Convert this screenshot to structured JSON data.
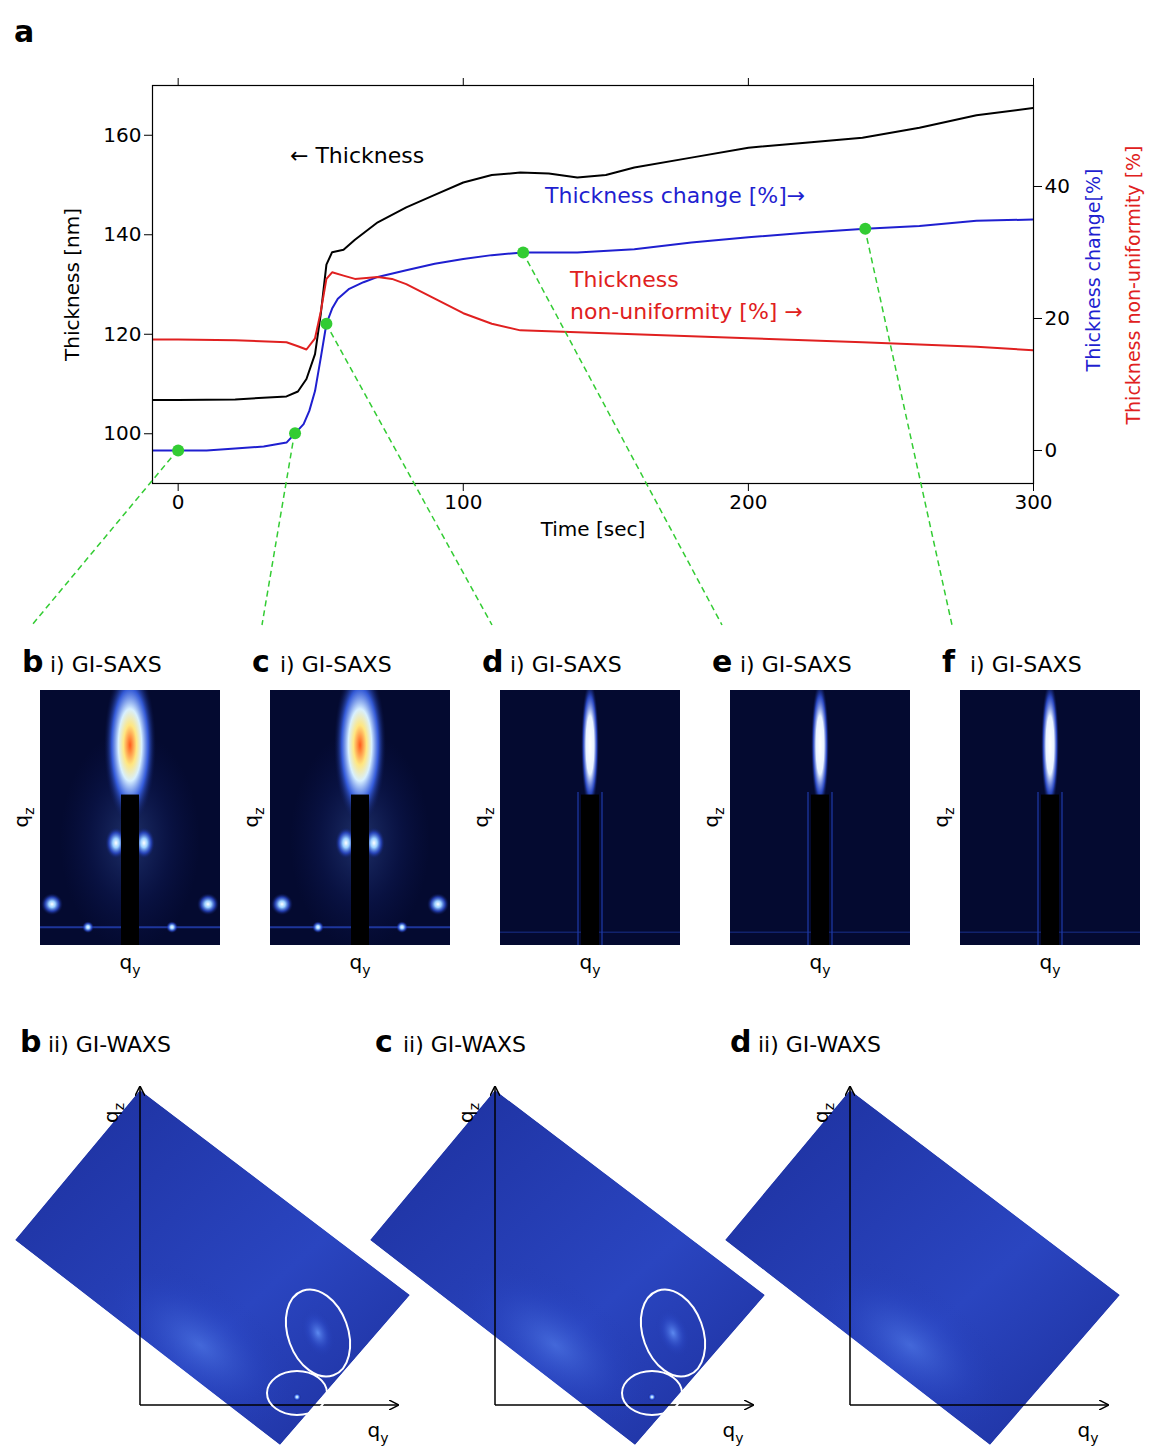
{
  "chart_data": {
    "type": "line",
    "x_label": "Time [sec]",
    "y_label": "Thickness [nm]",
    "xlim": [
      -9,
      300
    ],
    "xticks": [
      0,
      100,
      200,
      300
    ],
    "ylim": [
      90,
      170
    ],
    "yticks": [
      100,
      120,
      140,
      160
    ],
    "y2lim": [
      -5,
      55.3
    ],
    "y2ticks": [
      0,
      20,
      40
    ],
    "series": [
      {
        "annotation": "← Thickness",
        "color": "#000000",
        "x": [
          -9,
          0,
          20,
          38,
          42,
          45,
          48,
          50,
          52,
          54,
          58,
          62,
          70,
          80,
          90,
          100,
          110,
          120,
          130,
          140,
          150,
          160,
          180,
          200,
          220,
          240,
          260,
          280,
          300
        ],
        "values": [
          106.8,
          106.8,
          106.9,
          107.5,
          108.5,
          111,
          116,
          124,
          134,
          136.5,
          137,
          139,
          142.5,
          145.5,
          148,
          150.5,
          152,
          152.5,
          152.3,
          151.5,
          152,
          153.5,
          155.5,
          157.5,
          158.5,
          159.5,
          161.5,
          164,
          165.5
        ]
      },
      {
        "annotation": "Thickness change [%]→",
        "axis_label": "Thickness change[%]",
        "color": "#1f1fd0",
        "axis": "y2",
        "x": [
          -9,
          0,
          10,
          20,
          30,
          38,
          41,
          44,
          46,
          48,
          50,
          52,
          54,
          56,
          60,
          65,
          70,
          80,
          90,
          100,
          110,
          121,
          130,
          140,
          160,
          180,
          200,
          220,
          241,
          260,
          280,
          300
        ],
        "values": [
          0,
          0,
          0,
          0.3,
          0.6,
          1.2,
          2.6,
          4,
          6,
          9,
          14,
          19.2,
          21.5,
          23,
          24.5,
          25.5,
          26.3,
          27.3,
          28.3,
          29,
          29.6,
          30,
          30,
          30,
          30.5,
          31.5,
          32.3,
          33,
          33.6,
          34,
          34.8,
          35
        ]
      },
      {
        "annotation": "Thickness non-uniformity [%] →",
        "axis_label": "Thickness non-uniformity [%]",
        "color": "#e02020",
        "axis": "y2",
        "x": [
          -9,
          0,
          20,
          38,
          42,
          45,
          48,
          50,
          52,
          54,
          58,
          62,
          70,
          75,
          80,
          90,
          100,
          110,
          120,
          140,
          160,
          200,
          240,
          280,
          300
        ],
        "values": [
          16.8,
          16.8,
          16.7,
          16.4,
          15.8,
          15.3,
          17,
          21,
          26,
          27,
          26.5,
          26,
          26.3,
          26,
          25.2,
          23,
          20.8,
          19.2,
          18.2,
          17.9,
          17.6,
          17,
          16.4,
          15.7,
          15.2
        ]
      }
    ],
    "sampling_points": {
      "x": [
        0,
        41,
        52,
        121,
        241
      ],
      "values": [
        0,
        2.6,
        19.2,
        30,
        33.6
      ],
      "axis": "y2",
      "color": "#33cc33",
      "panels": [
        "b",
        "c",
        "d",
        "e",
        "f"
      ]
    }
  },
  "figure": {
    "chart_letter": "a",
    "saxs": [
      {
        "letter": "b",
        "title": "i) GI-SAXS",
        "spots": true
      },
      {
        "letter": "c",
        "title": "i) GI-SAXS",
        "spots": true
      },
      {
        "letter": "d",
        "title": "i) GI-SAXS",
        "spots": false
      },
      {
        "letter": "e",
        "title": "i) GI-SAXS",
        "spots": false
      },
      {
        "letter": "f",
        "title": "i) GI-SAXS",
        "spots": false
      }
    ],
    "waxs": [
      {
        "letter": "b",
        "title": "ii) GI-WAXS",
        "circled": true
      },
      {
        "letter": "c",
        "title": "ii) GI-WAXS",
        "circled": true
      },
      {
        "letter": "d",
        "title": "ii) GI-WAXS",
        "circled": false
      }
    ],
    "axis_labels": {
      "horizontal": {
        "base": "q",
        "sub": "y"
      },
      "vertical": {
        "base": "q",
        "sub": "z"
      }
    }
  }
}
